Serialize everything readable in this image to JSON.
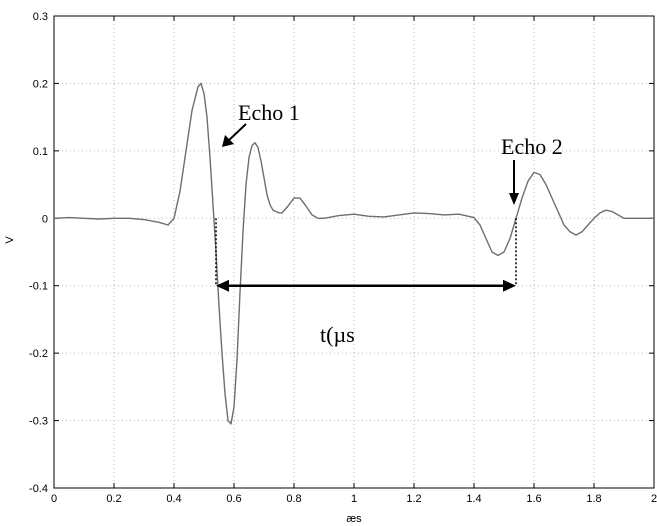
{
  "chart_data": {
    "type": "line",
    "title": "",
    "xlabel": "æs",
    "ylabel": "V",
    "xlim": [
      0,
      2
    ],
    "ylim": [
      -0.4,
      0.3
    ],
    "grid": true,
    "x_ticks": [
      "0",
      "0.2",
      "0.4",
      "0.6",
      "0.8",
      "1",
      "1.2",
      "1.4",
      "1.6",
      "1.8",
      "2"
    ],
    "y_ticks": [
      "0.3",
      "0.2",
      "0.1",
      "0",
      "-0.1",
      "-0.2",
      "-0.3",
      "-0.4"
    ],
    "series": [
      {
        "line_color": "#6e6e6e",
        "x": [
          0.0,
          0.05,
          0.1,
          0.15,
          0.2,
          0.25,
          0.3,
          0.35,
          0.38,
          0.4,
          0.42,
          0.44,
          0.46,
          0.48,
          0.49,
          0.5,
          0.51,
          0.52,
          0.53,
          0.54,
          0.55,
          0.56,
          0.57,
          0.58,
          0.59,
          0.6,
          0.61,
          0.62,
          0.63,
          0.64,
          0.65,
          0.66,
          0.67,
          0.68,
          0.69,
          0.7,
          0.71,
          0.72,
          0.73,
          0.74,
          0.75,
          0.76,
          0.78,
          0.8,
          0.82,
          0.84,
          0.86,
          0.88,
          0.9,
          0.95,
          1.0,
          1.05,
          1.1,
          1.15,
          1.2,
          1.25,
          1.3,
          1.35,
          1.4,
          1.42,
          1.44,
          1.46,
          1.48,
          1.5,
          1.52,
          1.54,
          1.56,
          1.58,
          1.6,
          1.62,
          1.64,
          1.66,
          1.68,
          1.7,
          1.72,
          1.74,
          1.76,
          1.78,
          1.8,
          1.82,
          1.84,
          1.86,
          1.88,
          1.9,
          1.95,
          2.0
        ],
        "y": [
          0.0,
          0.001,
          0.0,
          -0.001,
          0.0,
          0.0,
          -0.002,
          -0.006,
          -0.01,
          0.0,
          0.04,
          0.1,
          0.16,
          0.195,
          0.2,
          0.185,
          0.15,
          0.09,
          0.02,
          -0.05,
          -0.13,
          -0.2,
          -0.26,
          -0.3,
          -0.305,
          -0.28,
          -0.21,
          -0.11,
          -0.02,
          0.05,
          0.09,
          0.108,
          0.112,
          0.105,
          0.085,
          0.06,
          0.035,
          0.02,
          0.012,
          0.01,
          0.008,
          0.008,
          0.018,
          0.03,
          0.03,
          0.018,
          0.005,
          0.0,
          0.0,
          0.004,
          0.006,
          0.003,
          0.002,
          0.005,
          0.008,
          0.007,
          0.005,
          0.006,
          0.001,
          -0.01,
          -0.03,
          -0.05,
          -0.055,
          -0.05,
          -0.03,
          0.0,
          0.03,
          0.055,
          0.068,
          0.065,
          0.05,
          0.03,
          0.01,
          -0.01,
          -0.02,
          -0.025,
          -0.02,
          -0.01,
          0.0,
          0.008,
          0.012,
          0.01,
          0.005,
          0.0,
          0.0,
          0.0
        ]
      }
    ],
    "annotations": {
      "echo1_label": "Echo 1",
      "echo2_label": "Echo 2",
      "interval_label": "t(µs",
      "echo1_marker_x": 0.54,
      "echo2_marker_x": 1.54,
      "interval_y": -0.1
    }
  }
}
